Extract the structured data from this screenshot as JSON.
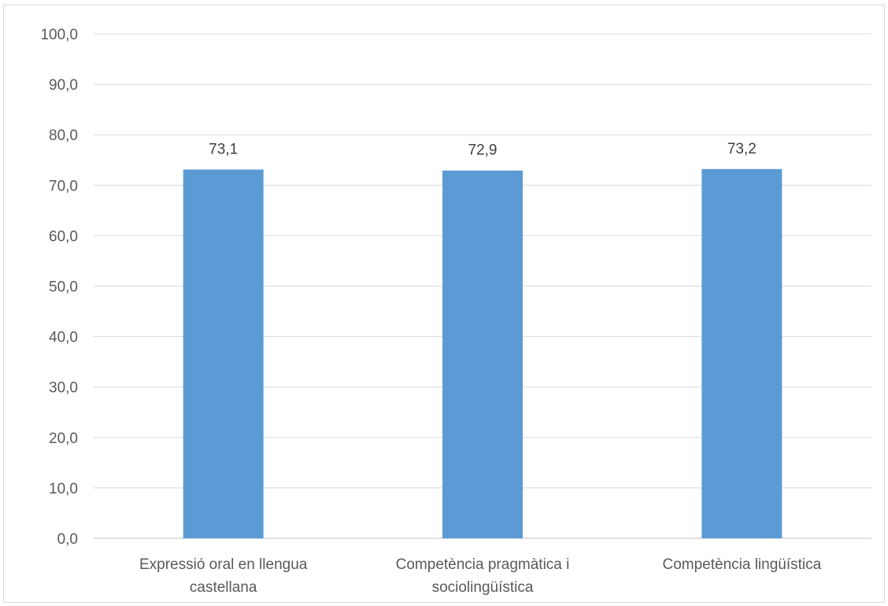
{
  "chart_data": {
    "type": "bar",
    "categories": [
      [
        "Expressió oral en llengua",
        "castellana"
      ],
      [
        "Competència pragmàtica i",
        "sociolingüística"
      ],
      [
        "Competència lingüística"
      ]
    ],
    "values": [
      73.1,
      72.9,
      73.2
    ],
    "data_labels": [
      "73,1",
      "72,9",
      "73,2"
    ],
    "title": "",
    "xlabel": "",
    "ylabel": "",
    "ylim": [
      0,
      100
    ],
    "yticks": [
      0,
      10,
      20,
      30,
      40,
      50,
      60,
      70,
      80,
      90,
      100
    ],
    "ytick_labels": [
      "0,0",
      "10,0",
      "20,0",
      "30,0",
      "40,0",
      "50,0",
      "60,0",
      "70,0",
      "80,0",
      "90,0",
      "100,0"
    ],
    "grid": true,
    "legend": "none",
    "colors": {
      "bar": "#5b9bd5",
      "grid": "#d9d9d9",
      "axis": "#bfbfbf"
    }
  }
}
